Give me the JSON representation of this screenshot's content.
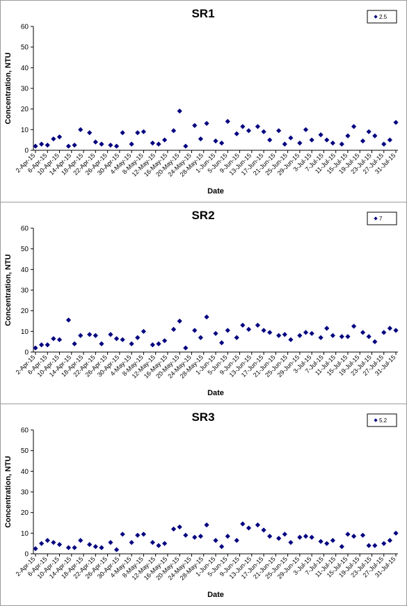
{
  "chart_data": [
    {
      "type": "scatter",
      "title": "SR1",
      "xlabel": "Date",
      "ylabel": "Concentration, NTU",
      "ylim": [
        0,
        60
      ],
      "yticks": [
        0,
        10,
        20,
        30,
        40,
        50,
        60
      ],
      "grid": false,
      "legend_position": "top-right",
      "marker_color": "#000080",
      "xtick_labels": [
        "2-Apr-15",
        "6-Apr-15",
        "10-Apr-15",
        "14-Apr-15",
        "18-Apr-15",
        "22-Apr-15",
        "26-Apr-15",
        "30-Apr-15",
        "4-May-15",
        "8-May-15",
        "12-May-15",
        "16-May-15",
        "20-May-15",
        "24-May-15",
        "28-May-15",
        "1-Jun-15",
        "5-Jun-15",
        "9-Jun-15",
        "13-Jun-15",
        "17-Jun-15",
        "21-Jun-15",
        "25-Jun-15",
        "29-Jun-15",
        "3-Jul-15",
        "7-Jul-15",
        "11-Jul-15",
        "15-Jul-15",
        "19-Jul-15",
        "23-Jul-15",
        "27-Jul-15",
        "31-Jul-15"
      ],
      "series": [
        {
          "name": "2.5",
          "x": [
            "2-Apr-15",
            "4-Apr-15",
            "6-Apr-15",
            "8-Apr-15",
            "10-Apr-15",
            "13-Apr-15",
            "15-Apr-15",
            "17-Apr-15",
            "20-Apr-15",
            "22-Apr-15",
            "24-Apr-15",
            "27-Apr-15",
            "29-Apr-15",
            "1-May-15",
            "4-May-15",
            "6-May-15",
            "8-May-15",
            "11-May-15",
            "13-May-15",
            "15-May-15",
            "18-May-15",
            "20-May-15",
            "22-May-15",
            "25-May-15",
            "27-May-15",
            "29-May-15",
            "1-Jun-15",
            "3-Jun-15",
            "5-Jun-15",
            "8-Jun-15",
            "10-Jun-15",
            "12-Jun-15",
            "15-Jun-15",
            "17-Jun-15",
            "19-Jun-15",
            "22-Jun-15",
            "24-Jun-15",
            "26-Jun-15",
            "29-Jun-15",
            "1-Jul-15",
            "3-Jul-15",
            "6-Jul-15",
            "8-Jul-15",
            "10-Jul-15",
            "13-Jul-15",
            "15-Jul-15",
            "17-Jul-15",
            "20-Jul-15",
            "22-Jul-15",
            "24-Jul-15",
            "27-Jul-15",
            "29-Jul-15",
            "31-Jul-15"
          ],
          "y": [
            2,
            3,
            2.5,
            5.5,
            6.5,
            2,
            2.5,
            10,
            8.5,
            4,
            3,
            2.5,
            2,
            8.5,
            3,
            8.5,
            9,
            3.5,
            3,
            5,
            9.5,
            19,
            2,
            12,
            5.5,
            13,
            4.5,
            3.5,
            14,
            8,
            11.5,
            9.5,
            11.5,
            9,
            5,
            9.5,
            3,
            6,
            3.5,
            10,
            5,
            7.5,
            5,
            3.5,
            3,
            7,
            11.5,
            4.5,
            9,
            7,
            3,
            5,
            13.5
          ]
        }
      ]
    },
    {
      "type": "scatter",
      "title": "SR2",
      "xlabel": "Date",
      "ylabel": "Concentration, NTU",
      "ylim": [
        0,
        60
      ],
      "yticks": [
        0,
        10,
        20,
        30,
        40,
        50,
        60
      ],
      "grid": false,
      "legend_position": "top-right",
      "marker_color": "#000080",
      "xtick_labels": [
        "2-Apr-15",
        "6-Apr-15",
        "10-Apr-15",
        "14-Apr-15",
        "18-Apr-15",
        "22-Apr-15",
        "26-Apr-15",
        "30-Apr-15",
        "4-May-15",
        "8-May-15",
        "12-May-15",
        "16-May-15",
        "20-May-15",
        "24-May-15",
        "28-May-15",
        "1-Jun-15",
        "5-Jun-15",
        "9-Jun-15",
        "13-Jun-15",
        "17-Jun-15",
        "21-Jun-15",
        "25-Jun-15",
        "29-Jun-15",
        "3-Jul-15",
        "7-Jul-15",
        "11-Jul-15",
        "15-Jul-15",
        "19-Jul-15",
        "23-Jul-15",
        "27-Jul-15",
        "31-Jul-15"
      ],
      "series": [
        {
          "name": "7",
          "x": [
            "2-Apr-15",
            "4-Apr-15",
            "6-Apr-15",
            "8-Apr-15",
            "10-Apr-15",
            "13-Apr-15",
            "15-Apr-15",
            "17-Apr-15",
            "20-Apr-15",
            "22-Apr-15",
            "24-Apr-15",
            "27-Apr-15",
            "29-Apr-15",
            "1-May-15",
            "4-May-15",
            "6-May-15",
            "8-May-15",
            "11-May-15",
            "13-May-15",
            "15-May-15",
            "18-May-15",
            "20-May-15",
            "22-May-15",
            "25-May-15",
            "27-May-15",
            "29-May-15",
            "1-Jun-15",
            "3-Jun-15",
            "5-Jun-15",
            "8-Jun-15",
            "10-Jun-15",
            "12-Jun-15",
            "15-Jun-15",
            "17-Jun-15",
            "19-Jun-15",
            "22-Jun-15",
            "24-Jun-15",
            "26-Jun-15",
            "29-Jun-15",
            "1-Jul-15",
            "3-Jul-15",
            "6-Jul-15",
            "8-Jul-15",
            "10-Jul-15",
            "13-Jul-15",
            "15-Jul-15",
            "17-Jul-15",
            "20-Jul-15",
            "22-Jul-15",
            "24-Jul-15",
            "27-Jul-15",
            "29-Jul-15",
            "31-Jul-15"
          ],
          "y": [
            2,
            3.5,
            3.5,
            6.5,
            6,
            15.5,
            4,
            8,
            8.5,
            8,
            4,
            8.5,
            6.5,
            6,
            4,
            7,
            10,
            3.5,
            4,
            5.5,
            11,
            15,
            2,
            10.5,
            7,
            17,
            9,
            4.5,
            10.5,
            7,
            13,
            11,
            13,
            10.5,
            9.5,
            8,
            8.5,
            6,
            8,
            9.5,
            9,
            7,
            11.5,
            8,
            7.5,
            7.5,
            12.5,
            9.5,
            7.5,
            5,
            9.5,
            11.5,
            10.5
          ]
        }
      ]
    },
    {
      "type": "scatter",
      "title": "SR3",
      "xlabel": "Date",
      "ylabel": "Concentration, NTU",
      "ylim": [
        0,
        60
      ],
      "yticks": [
        0,
        10,
        20,
        30,
        40,
        50,
        60
      ],
      "grid": false,
      "legend_position": "top-right",
      "marker_color": "#000080",
      "xtick_labels": [
        "2-Apr-15",
        "6-Apr-15",
        "10-Apr-15",
        "14-Apr-15",
        "18-Apr-15",
        "22-Apr-15",
        "26-Apr-15",
        "30-Apr-15",
        "4-May-15",
        "8-May-15",
        "12-May-15",
        "16-May-15",
        "20-May-15",
        "24-May-15",
        "28-May-15",
        "1-Jun-15",
        "5-Jun-15",
        "9-Jun-15",
        "13-Jun-15",
        "17-Jun-15",
        "21-Jun-15",
        "25-Jun-15",
        "29-Jun-15",
        "3-Jul-15",
        "7-Jul-15",
        "11-Jul-15",
        "15-Jul-15",
        "19-Jul-15",
        "23-Jul-15",
        "27-Jul-15",
        "31-Jul-15"
      ],
      "series": [
        {
          "name": "5.2",
          "x": [
            "2-Apr-15",
            "4-Apr-15",
            "6-Apr-15",
            "8-Apr-15",
            "10-Apr-15",
            "13-Apr-15",
            "15-Apr-15",
            "17-Apr-15",
            "20-Apr-15",
            "22-Apr-15",
            "24-Apr-15",
            "27-Apr-15",
            "29-Apr-15",
            "1-May-15",
            "4-May-15",
            "6-May-15",
            "8-May-15",
            "11-May-15",
            "13-May-15",
            "15-May-15",
            "18-May-15",
            "20-May-15",
            "22-May-15",
            "25-May-15",
            "27-May-15",
            "29-May-15",
            "1-Jun-15",
            "3-Jun-15",
            "5-Jun-15",
            "8-Jun-15",
            "10-Jun-15",
            "12-Jun-15",
            "15-Jun-15",
            "17-Jun-15",
            "19-Jun-15",
            "22-Jun-15",
            "24-Jun-15",
            "26-Jun-15",
            "29-Jun-15",
            "1-Jul-15",
            "3-Jul-15",
            "6-Jul-15",
            "8-Jul-15",
            "10-Jul-15",
            "13-Jul-15",
            "15-Jul-15",
            "17-Jul-15",
            "20-Jul-15",
            "22-Jul-15",
            "24-Jul-15",
            "27-Jul-15",
            "29-Jul-15",
            "31-Jul-15"
          ],
          "y": [
            2.5,
            5,
            6.5,
            5.5,
            4.5,
            3,
            3,
            6.5,
            4.5,
            3.5,
            3,
            5.5,
            2,
            9.5,
            5.5,
            9,
            9.5,
            5.5,
            4,
            5,
            12,
            13,
            9,
            8,
            8.5,
            14,
            6.5,
            3.5,
            8.5,
            6.5,
            14.5,
            12.5,
            14,
            11.5,
            8.5,
            7.5,
            9.5,
            5.5,
            8,
            8.5,
            8,
            6,
            5,
            6.5,
            3.5,
            9.5,
            8.5,
            9,
            4,
            4,
            5,
            6.5,
            10
          ]
        }
      ]
    }
  ]
}
